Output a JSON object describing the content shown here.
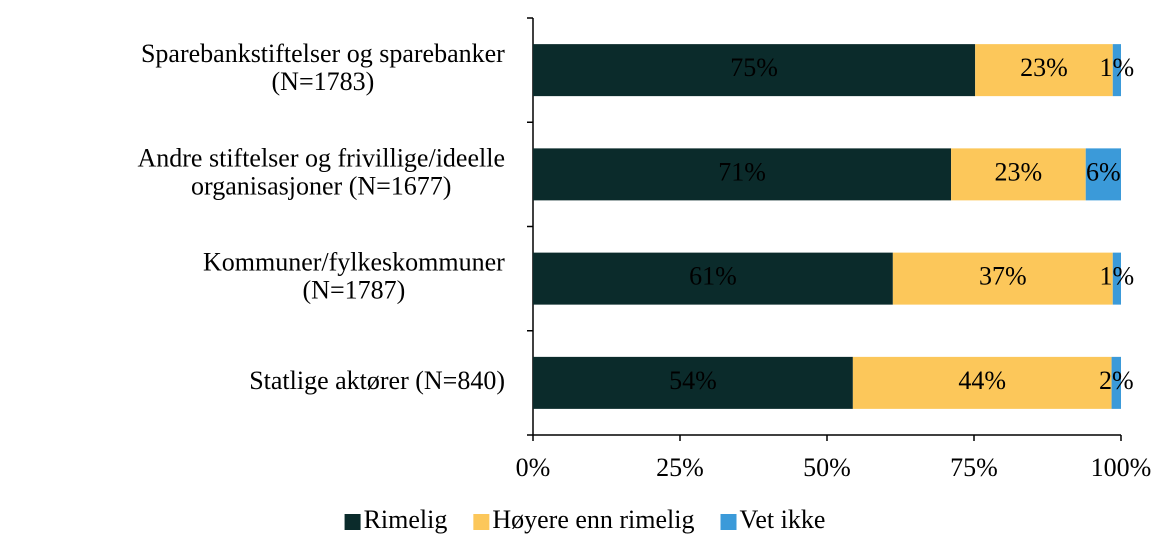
{
  "chart_data": {
    "type": "stacked_barh",
    "categories": [
      "Sparebankstiftelser og sparebanker\n(N=1783)",
      "Andre stiftelser og frivillige/ideelle\norganisasjoner (N=1677)",
      "Kommuner/fylkeskommuner\n(N=1787)",
      "Statlige aktører (N=840)"
    ],
    "series": [
      {
        "name": "Rimelig",
        "color": "#0b2b2b",
        "values": [
          75.2,
          71.1,
          61.2,
          54.4
        ],
        "value_labels": [
          "75%",
          "71%",
          "61%",
          "54%"
        ]
      },
      {
        "name": "Høyere enn rimelig",
        "color": "#fcc75a",
        "values": [
          23.4,
          22.9,
          37.4,
          44.0
        ],
        "value_labels": [
          "23%",
          "23%",
          "37%",
          "44%"
        ]
      },
      {
        "name": "Vet ikke",
        "color": "#3b9ad9",
        "values": [
          1.4,
          6.0,
          1.4,
          1.6
        ],
        "value_labels": [
          "1%",
          "6%",
          "1%",
          "2%"
        ]
      }
    ],
    "xlim": [
      0,
      100
    ],
    "xticks": [
      {
        "value": 0,
        "label": "0%"
      },
      {
        "value": 25,
        "label": "25%"
      },
      {
        "value": 50,
        "label": "50%"
      },
      {
        "value": 75,
        "label": "75%"
      },
      {
        "value": 100,
        "label": "100%"
      }
    ],
    "legend": "bottom"
  }
}
